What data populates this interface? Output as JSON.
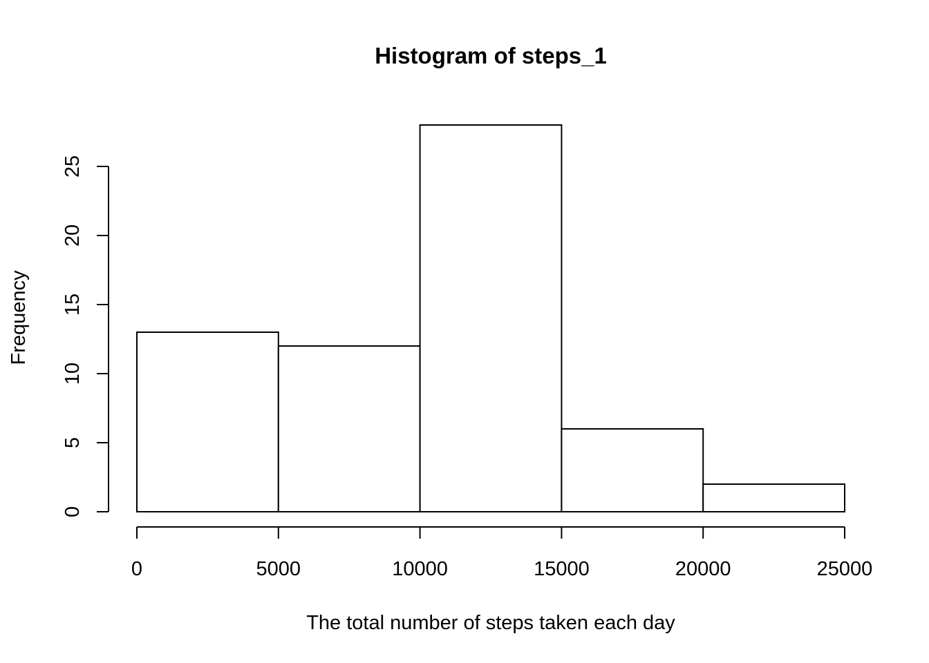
{
  "chart_data": {
    "type": "bar",
    "title": "Histogram of steps_1",
    "xlabel": "The total number of steps taken each day",
    "ylabel": "Frequency",
    "bins": [
      {
        "start": 0,
        "end": 5000,
        "count": 13
      },
      {
        "start": 5000,
        "end": 10000,
        "count": 12
      },
      {
        "start": 10000,
        "end": 15000,
        "count": 28
      },
      {
        "start": 15000,
        "end": 20000,
        "count": 6
      },
      {
        "start": 20000,
        "end": 25000,
        "count": 2
      }
    ],
    "xlim": [
      0,
      25000
    ],
    "ylim": [
      0,
      28
    ],
    "x_ticks": [
      "0",
      "5000",
      "10000",
      "15000",
      "20000",
      "25000"
    ],
    "y_ticks": [
      "0",
      "5",
      "10",
      "15",
      "20",
      "25"
    ],
    "grid": false,
    "legend": "none",
    "colors": {
      "bar_fill": "#ffffff",
      "bar_stroke": "#000000"
    }
  }
}
